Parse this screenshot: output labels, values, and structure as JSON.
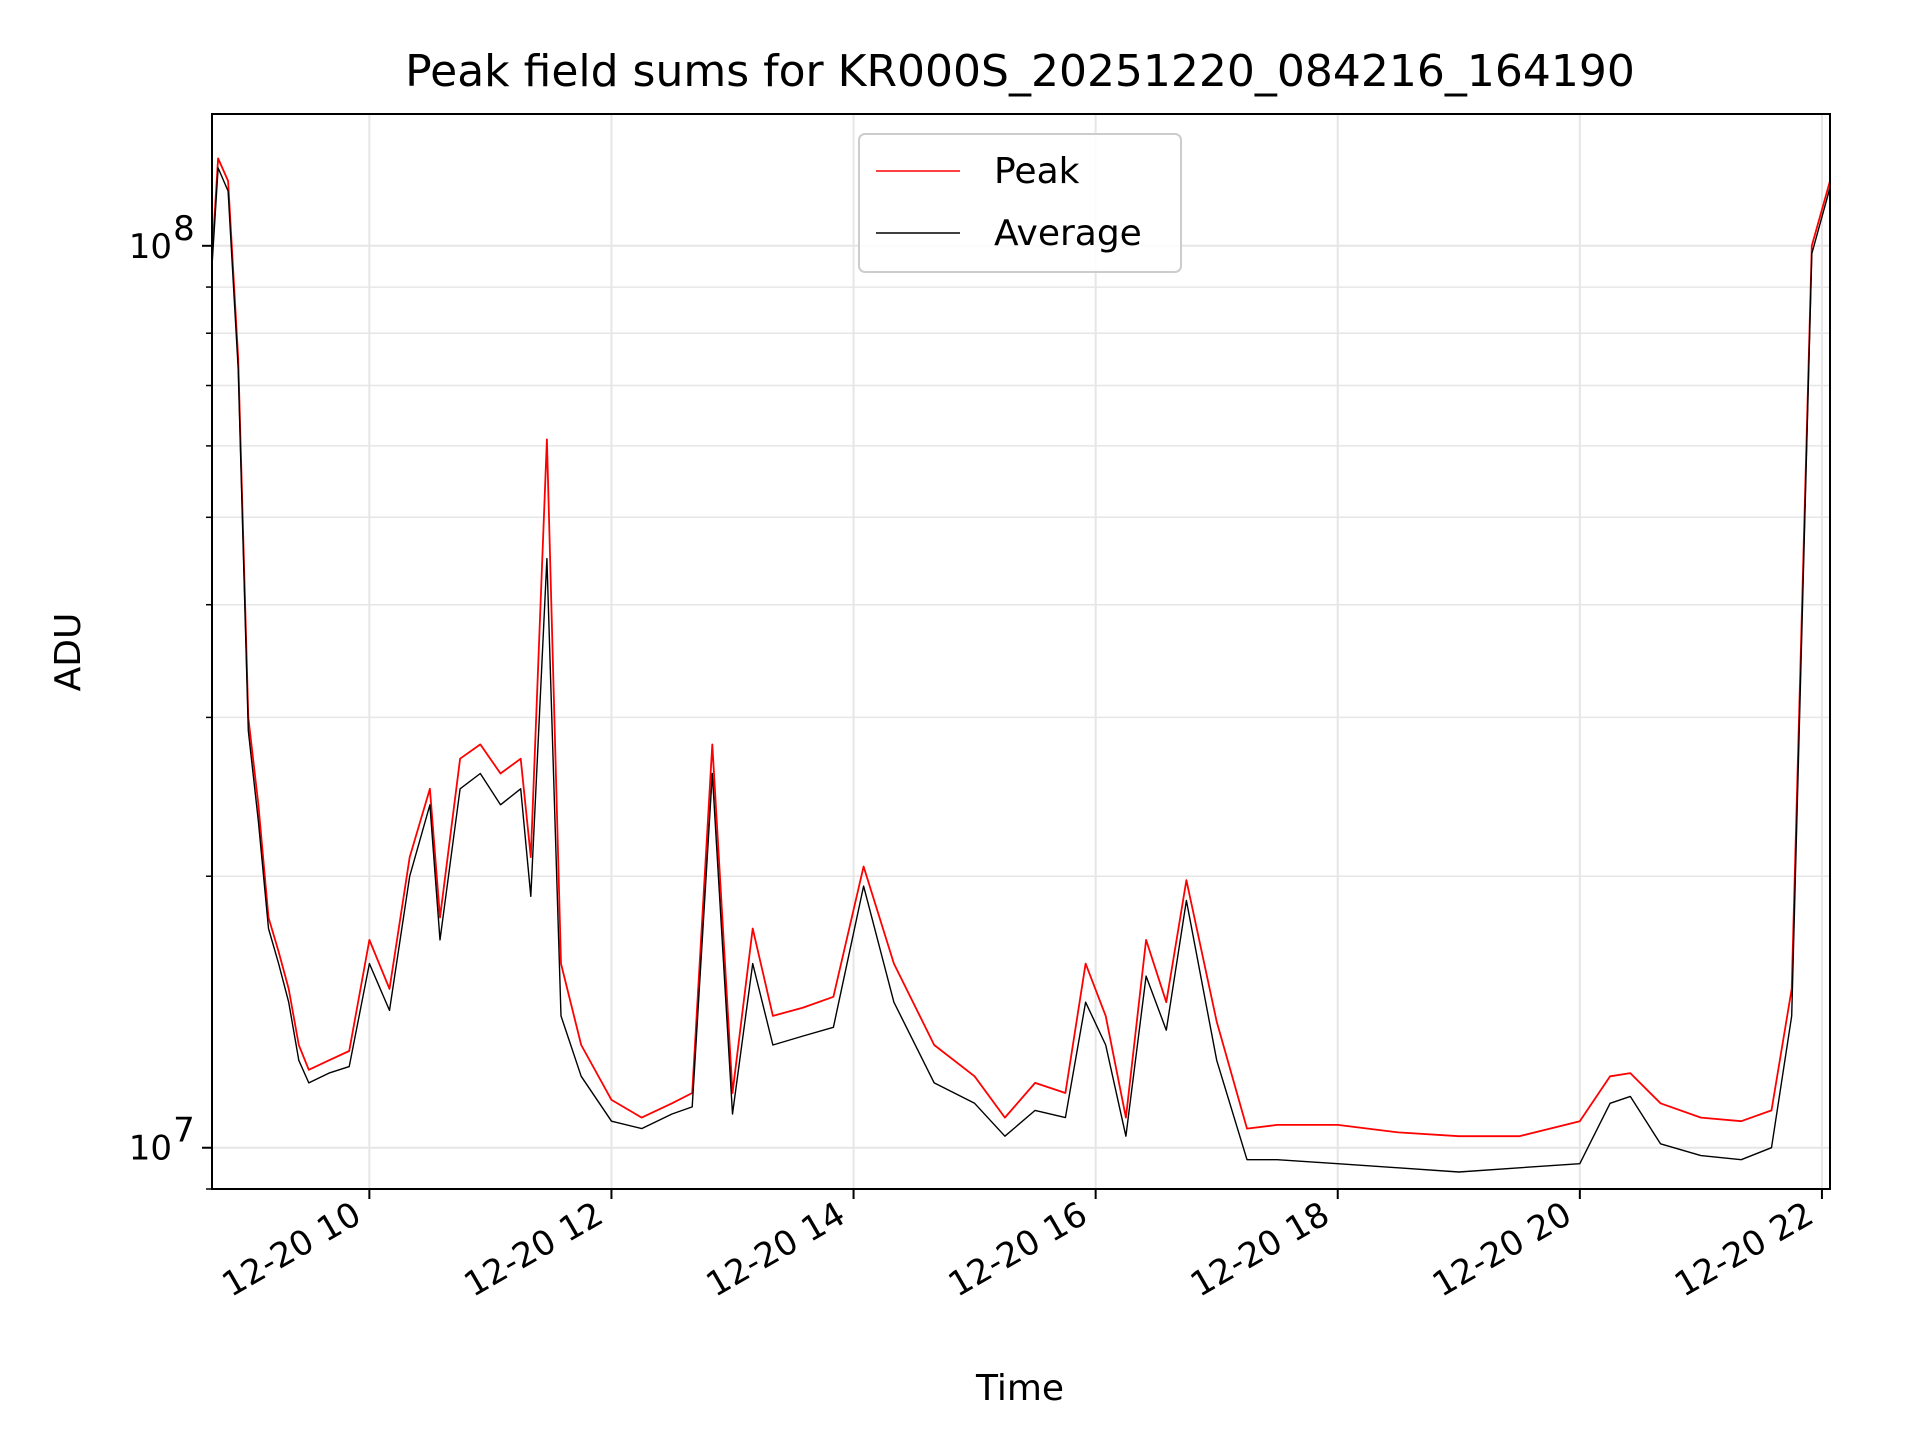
{
  "chart_data": {
    "type": "line",
    "title": "Peak field sums for KR000S_20251220_084216_164190",
    "xlabel": "Time",
    "ylabel": "ADU",
    "yscale": "log",
    "ylim": [
      9000000,
      140000000
    ],
    "xlim": [
      "2025-12-20 08:42",
      "2025-12-20 22:04"
    ],
    "grid": true,
    "legend_position": "upper center",
    "x_tick_labels": [
      "12-20 10",
      "12-20 12",
      "12-20 14",
      "12-20 16",
      "12-20 18",
      "12-20 20",
      "12-20 22"
    ],
    "x_tick_values": [
      "2025-12-20 10:00",
      "2025-12-20 12:00",
      "2025-12-20 14:00",
      "2025-12-20 16:00",
      "2025-12-20 18:00",
      "2025-12-20 20:00",
      "2025-12-20 22:00"
    ],
    "y_tick_labels": [
      {
        "base": "10",
        "exp": "7",
        "value": 10000000
      },
      {
        "base": "10",
        "exp": "8",
        "value": 100000000
      }
    ],
    "x": [
      "2025-12-20 08:42",
      "2025-12-20 08:45",
      "2025-12-20 08:50",
      "2025-12-20 08:55",
      "2025-12-20 09:00",
      "2025-12-20 09:05",
      "2025-12-20 09:10",
      "2025-12-20 09:15",
      "2025-12-20 09:20",
      "2025-12-20 09:25",
      "2025-12-20 09:30",
      "2025-12-20 09:40",
      "2025-12-20 09:50",
      "2025-12-20 10:00",
      "2025-12-20 10:10",
      "2025-12-20 10:20",
      "2025-12-20 10:30",
      "2025-12-20 10:35",
      "2025-12-20 10:45",
      "2025-12-20 10:55",
      "2025-12-20 11:05",
      "2025-12-20 11:15",
      "2025-12-20 11:20",
      "2025-12-20 11:28",
      "2025-12-20 11:35",
      "2025-12-20 11:45",
      "2025-12-20 12:00",
      "2025-12-20 12:15",
      "2025-12-20 12:30",
      "2025-12-20 12:40",
      "2025-12-20 12:50",
      "2025-12-20 13:00",
      "2025-12-20 13:10",
      "2025-12-20 13:20",
      "2025-12-20 13:35",
      "2025-12-20 13:50",
      "2025-12-20 14:05",
      "2025-12-20 14:20",
      "2025-12-20 14:40",
      "2025-12-20 15:00",
      "2025-12-20 15:15",
      "2025-12-20 15:30",
      "2025-12-20 15:45",
      "2025-12-20 15:55",
      "2025-12-20 16:05",
      "2025-12-20 16:15",
      "2025-12-20 16:25",
      "2025-12-20 16:35",
      "2025-12-20 16:45",
      "2025-12-20 17:00",
      "2025-12-20 17:15",
      "2025-12-20 17:30",
      "2025-12-20 18:00",
      "2025-12-20 18:30",
      "2025-12-20 19:00",
      "2025-12-20 19:30",
      "2025-12-20 20:00",
      "2025-12-20 20:15",
      "2025-12-20 20:25",
      "2025-12-20 20:40",
      "2025-12-20 21:00",
      "2025-12-20 21:20",
      "2025-12-20 21:35",
      "2025-12-20 21:45",
      "2025-12-20 21:55",
      "2025-12-20 22:04"
    ],
    "series": [
      {
        "name": "Peak",
        "color": "#ff0000",
        "values": [
          97000000,
          125000000,
          118000000,
          75000000,
          30000000,
          24000000,
          18000000,
          16500000,
          15000000,
          13000000,
          12200000,
          12500000,
          12800000,
          17000000,
          15000000,
          21000000,
          25000000,
          18000000,
          27000000,
          28000000,
          26000000,
          27000000,
          21000000,
          61000000,
          16000000,
          13000000,
          11300000,
          10800000,
          11200000,
          11500000,
          28000000,
          11500000,
          17500000,
          14000000,
          14300000,
          14700000,
          20500000,
          16000000,
          13000000,
          12000000,
          10800000,
          11800000,
          11500000,
          16000000,
          14000000,
          10800000,
          17000000,
          14500000,
          19800000,
          13800000,
          10500000,
          10600000,
          10600000,
          10400000,
          10300000,
          10300000,
          10700000,
          12000000,
          12100000,
          11200000,
          10800000,
          10700000,
          11000000,
          15000000,
          100000000,
          118000000
        ]
      },
      {
        "name": "Average",
        "color": "#000000",
        "values": [
          95000000,
          122000000,
          115000000,
          73000000,
          29000000,
          23000000,
          17500000,
          16000000,
          14500000,
          12500000,
          11800000,
          12100000,
          12300000,
          16000000,
          14200000,
          20000000,
          24000000,
          17000000,
          25000000,
          26000000,
          24000000,
          25000000,
          19000000,
          45000000,
          14000000,
          12000000,
          10700000,
          10500000,
          10900000,
          11100000,
          26000000,
          10900000,
          16000000,
          13000000,
          13300000,
          13600000,
          19500000,
          14500000,
          11800000,
          11200000,
          10300000,
          11000000,
          10800000,
          14500000,
          13000000,
          10300000,
          15500000,
          13500000,
          18800000,
          12500000,
          9700000,
          9700000,
          9600000,
          9500000,
          9400000,
          9500000,
          9600000,
          11200000,
          11400000,
          10100000,
          9800000,
          9700000,
          10000000,
          14000000,
          98000000,
          116000000
        ]
      }
    ]
  }
}
